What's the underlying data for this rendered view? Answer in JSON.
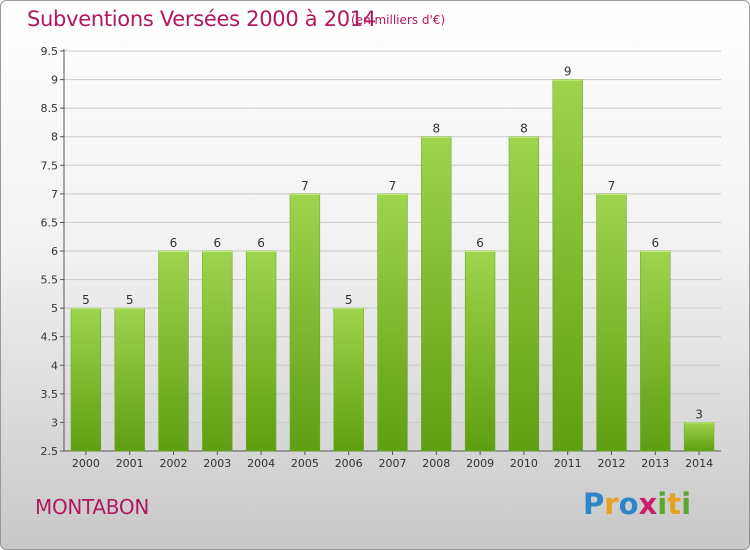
{
  "title": "Subventions Versées 2000 à 2014",
  "subtitle": "(en milliers d'€)",
  "commune": "MONTABON",
  "logo": {
    "text": "Proxiti",
    "letters": [
      "P",
      "r",
      "o",
      "x",
      "i",
      "t",
      "i"
    ],
    "colors": [
      "#2e86c8",
      "#e8a020",
      "#2e86c8",
      "#c8206a",
      "#5aa830",
      "#e8a020",
      "#5aa830"
    ]
  },
  "colors": {
    "accent": "#b0185f",
    "bar_top": "#9fd44e",
    "bar_bottom": "#5f9e12",
    "grid": "#c9c9c9",
    "axis_text": "#333333"
  },
  "chart_data": {
    "type": "bar",
    "title": "Subventions Versées 2000 à 2014",
    "subtitle": "(en milliers d'€)",
    "categories": [
      "2000",
      "2001",
      "2002",
      "2003",
      "2004",
      "2005",
      "2006",
      "2007",
      "2008",
      "2009",
      "2010",
      "2011",
      "2012",
      "2013",
      "2014"
    ],
    "values": [
      5,
      5,
      6,
      6,
      6,
      7,
      5,
      7,
      8,
      6,
      8,
      9,
      7,
      6,
      3
    ],
    "ylim": [
      2.5,
      9.5
    ],
    "yticks": [
      "2.5",
      "3",
      "3.5",
      "4",
      "4.5",
      "5",
      "5.5",
      "6",
      "6.5",
      "7",
      "7.5",
      "8",
      "8.5",
      "9",
      "9.5"
    ],
    "grid": true,
    "data_labels": true,
    "legend": "none"
  }
}
